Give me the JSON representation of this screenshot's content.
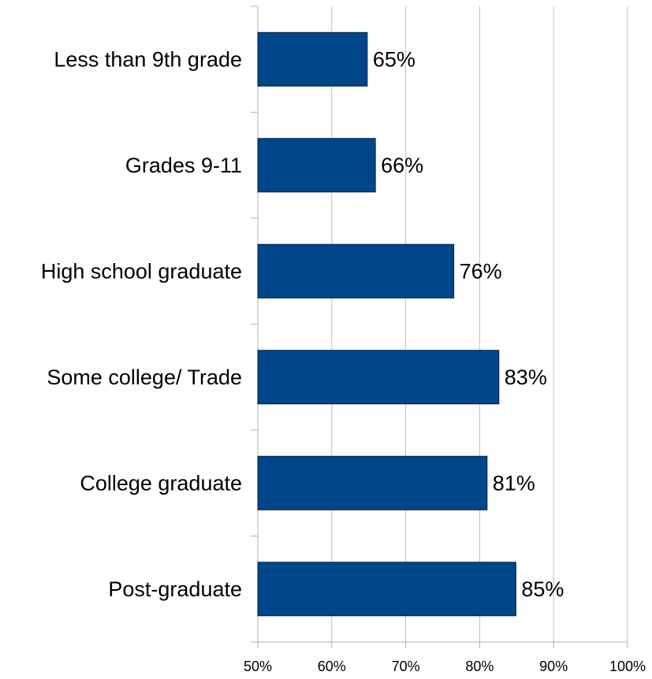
{
  "chart_data": {
    "type": "bar",
    "orientation": "horizontal",
    "categories": [
      "Less than 9th grade",
      "Grades 9-11",
      "High school graduate",
      "Some college/ Trade",
      "College graduate",
      "Post-graduate"
    ],
    "values": [
      64.8,
      65.9,
      76.5,
      82.6,
      81.0,
      84.9
    ],
    "value_labels": [
      "65%",
      "66%",
      "76%",
      "83%",
      "81%",
      "85%"
    ],
    "xlim": [
      50,
      100
    ],
    "x_ticks": [
      50,
      60,
      70,
      80,
      90,
      100
    ],
    "x_tick_labels": [
      "50%",
      "60%",
      "70%",
      "80%",
      "90%",
      "100%"
    ],
    "grid": true,
    "legend": "none",
    "title": "",
    "xlabel": "",
    "ylabel": "",
    "bar_color": "#00468b",
    "bar_border_color": "#001f3f",
    "grid_color": "#c0c0c0",
    "axis_color": "#b3b3b3"
  }
}
